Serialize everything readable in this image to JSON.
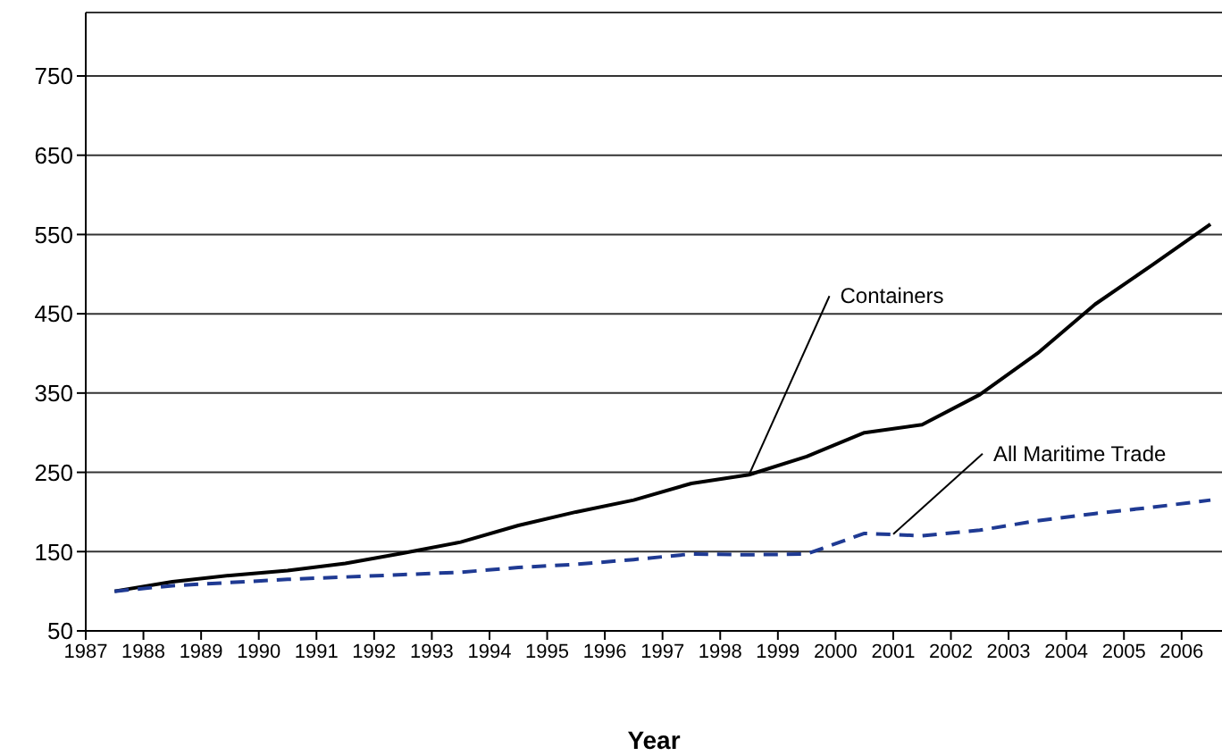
{
  "chart_data": {
    "type": "line",
    "xlabel": "Year",
    "xlim": [
      1987,
      2006.7
    ],
    "xticks": [
      1987,
      1988,
      1989,
      1990,
      1991,
      1992,
      1993,
      1994,
      1995,
      1996,
      1997,
      1998,
      1999,
      2000,
      2001,
      2002,
      2003,
      2004,
      2005,
      2006
    ],
    "ylim": [
      50,
      830
    ],
    "yticks": [
      50,
      150,
      250,
      350,
      450,
      550,
      650,
      750
    ],
    "grid": "y",
    "marker": "none",
    "legend": false,
    "x": [
      1987.5,
      1988.5,
      1989.5,
      1990.5,
      1991.5,
      1992.5,
      1993.5,
      1994.5,
      1995.5,
      1996.5,
      1997.5,
      1998.5,
      1999.5,
      2000.5,
      2001.5,
      2002.5,
      2003.5,
      2004.5,
      2005.5,
      2006.5
    ],
    "series": [
      {
        "color": "#000000",
        "line_style": "solid",
        "values": [
          100,
          112,
          120,
          126,
          135,
          148,
          162,
          183,
          200,
          215,
          236,
          247,
          270,
          300,
          310,
          348,
          400,
          462,
          512,
          563
        ]
      },
      {
        "color": "#1f3a93",
        "line_style": "dashed",
        "values": [
          100,
          107,
          111,
          115,
          118,
          121,
          124,
          130,
          134,
          140,
          147,
          146,
          147,
          173,
          170,
          177,
          189,
          198,
          206,
          215
        ]
      }
    ],
    "annotations": [
      {
        "text": "Containers",
        "x": 1998.5,
        "y": 247
      },
      {
        "text": "All Maritime Trade",
        "x": 2001,
        "y": 172
      }
    ]
  }
}
